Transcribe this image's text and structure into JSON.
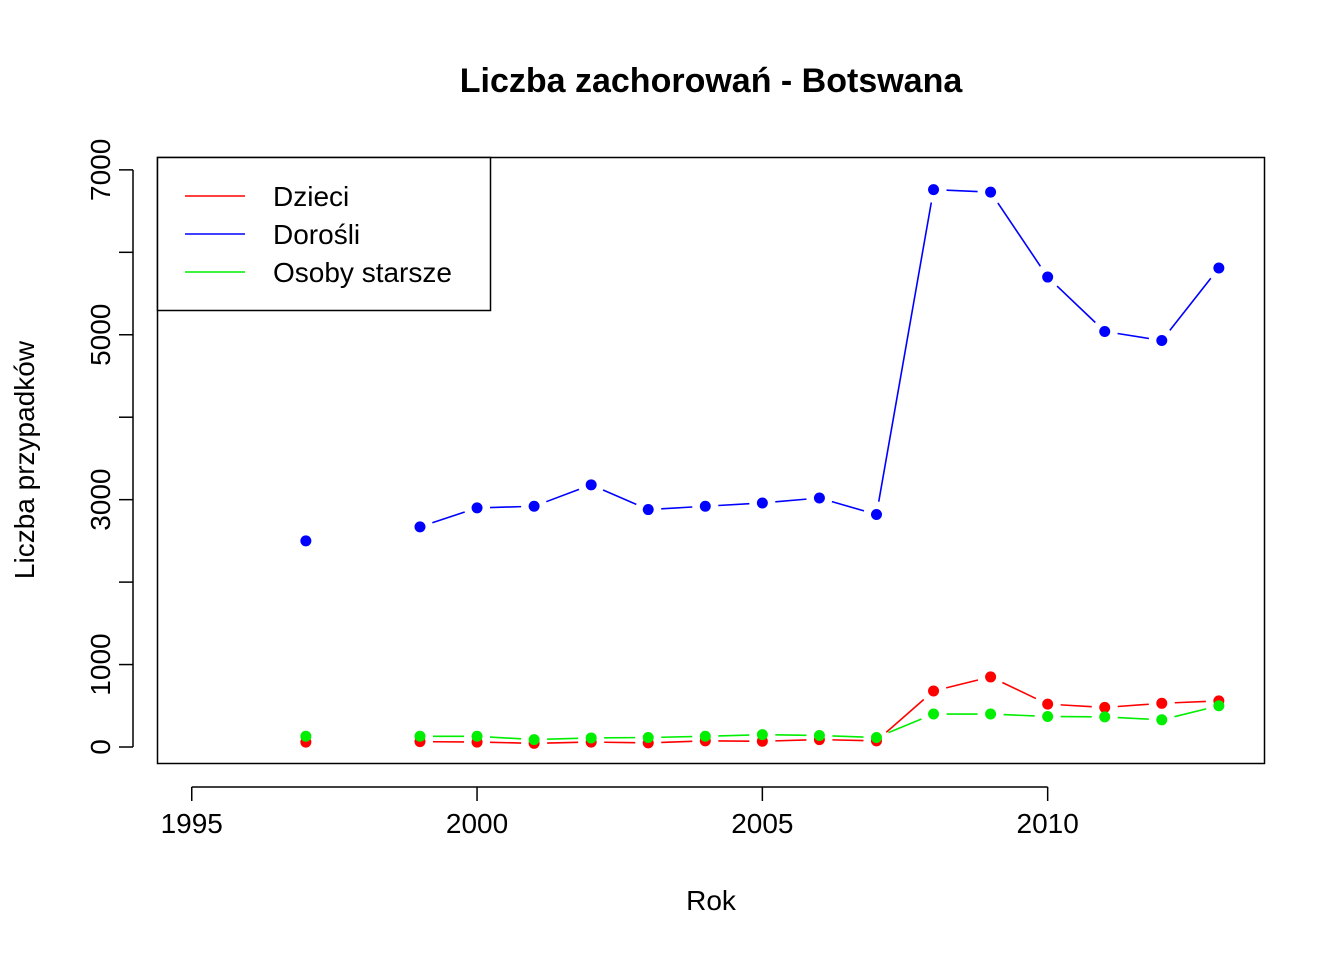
{
  "chart_data": {
    "type": "line",
    "title": "Liczba zachorowań -  Botswana",
    "xlabel": "Rok",
    "ylabel": "Liczba przypadków",
    "xlim": [
      1994.4,
      2013.8
    ],
    "ylim": [
      -200,
      7150
    ],
    "x_ticks": [
      1995,
      2000,
      2005,
      2010
    ],
    "x_tick_labels": [
      "1995",
      "2000",
      "2005",
      "2010"
    ],
    "y_ticks": [
      0,
      1000,
      2000,
      3000,
      4000,
      5000,
      6000,
      7000
    ],
    "y_tick_labels": [
      "0",
      "1000",
      "",
      "3000",
      "",
      "5000",
      "",
      "7000"
    ],
    "legend_position": "top-left",
    "grid": false,
    "x": [
      1996,
      1997,
      1998,
      1999,
      2000,
      2001,
      2002,
      2003,
      2004,
      2005,
      2006,
      2007,
      2008,
      2009,
      2010,
      2011,
      2012,
      2013
    ],
    "series": [
      {
        "name": "Dzieci",
        "color": "#ff0000",
        "values": [
          null,
          60,
          null,
          65,
          60,
          45,
          60,
          50,
          75,
          70,
          90,
          75,
          680,
          850,
          520,
          480,
          530,
          560
        ]
      },
      {
        "name": "Dorośli",
        "color": "#0000ff",
        "values": [
          null,
          2500,
          null,
          2670,
          2900,
          2920,
          3180,
          2880,
          2920,
          2960,
          3020,
          2820,
          6760,
          6730,
          5700,
          5040,
          4930,
          5810
        ]
      },
      {
        "name": "Osoby starsze",
        "color": "#00ee00",
        "values": [
          null,
          130,
          null,
          130,
          130,
          90,
          110,
          115,
          130,
          150,
          140,
          115,
          400,
          400,
          370,
          365,
          330,
          500
        ]
      }
    ]
  }
}
